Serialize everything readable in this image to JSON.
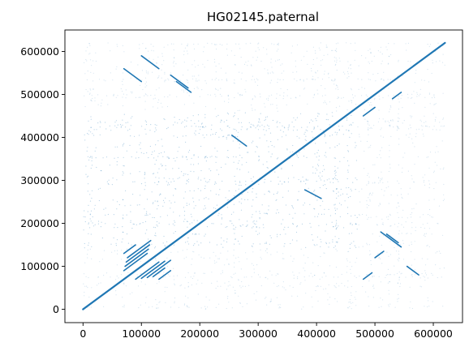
{
  "chart_data": {
    "type": "scatter",
    "title": "HG02145.paternal",
    "xlabel": "",
    "ylabel": "",
    "xlim": [
      -31000,
      650000
    ],
    "ylim": [
      -31000,
      650000
    ],
    "x_ticks": [
      0,
      100000,
      200000,
      300000,
      400000,
      500000,
      600000
    ],
    "y_ticks": [
      0,
      100000,
      200000,
      300000,
      400000,
      500000,
      600000
    ],
    "x_tick_labels": [
      "0",
      "100000",
      "200000",
      "300000",
      "400000",
      "500000",
      "600000"
    ],
    "y_tick_labels": [
      "0",
      "100000",
      "200000",
      "300000",
      "400000",
      "500000",
      "600000"
    ],
    "grid": false,
    "color": "#1f77b4",
    "series": [
      {
        "kind": "diagonal",
        "points": [
          [
            0,
            0
          ],
          [
            620000,
            620000
          ]
        ]
      },
      {
        "kind": "segments",
        "segments": [
          [
            [
              70000,
              90000
            ],
            [
              110000,
              130000
            ]
          ],
          [
            [
              72000,
              100000
            ],
            [
              112000,
              140000
            ]
          ],
          [
            [
              74000,
              110000
            ],
            [
              114000,
              150000
            ]
          ],
          [
            [
              76000,
              120000
            ],
            [
              116000,
              160000
            ]
          ],
          [
            [
              70000,
              130000
            ],
            [
              90000,
              150000
            ]
          ],
          [
            [
              90000,
              70000
            ],
            [
              130000,
              110000
            ]
          ],
          [
            [
              100000,
              72000
            ],
            [
              140000,
              112000
            ]
          ],
          [
            [
              110000,
              74000
            ],
            [
              150000,
              114000
            ]
          ],
          [
            [
              120000,
              76000
            ],
            [
              140000,
              96000
            ]
          ],
          [
            [
              130000,
              70000
            ],
            [
              150000,
              90000
            ]
          ],
          [
            [
              255000,
              405000
            ],
            [
              280000,
              380000
            ]
          ],
          [
            [
              380000,
              278000
            ],
            [
              408000,
              258000
            ]
          ],
          [
            [
              150000,
              545000
            ],
            [
              180000,
              515000
            ]
          ],
          [
            [
              160000,
              530000
            ],
            [
              185000,
              505000
            ]
          ],
          [
            [
              510000,
              180000
            ],
            [
              545000,
              145000
            ]
          ],
          [
            [
              520000,
              175000
            ],
            [
              540000,
              155000
            ]
          ],
          [
            [
              70000,
              560000
            ],
            [
              100000,
              530000
            ]
          ],
          [
            [
              100000,
              590000
            ],
            [
              130000,
              560000
            ]
          ],
          [
            [
              555000,
              100000
            ],
            [
              575000,
              80000
            ]
          ],
          [
            [
              480000,
              450000
            ],
            [
              500000,
              470000
            ]
          ],
          [
            [
              530000,
              490000
            ],
            [
              545000,
              505000
            ]
          ],
          [
            [
              480000,
              70000
            ],
            [
              495000,
              85000
            ]
          ],
          [
            [
              500000,
              120000
            ],
            [
              515000,
              135000
            ]
          ]
        ]
      },
      {
        "kind": "background_dots",
        "description": "sparse scattered alignment dots covering the plot, denser in 0-460000 y band and 0-500000 x band"
      }
    ]
  }
}
